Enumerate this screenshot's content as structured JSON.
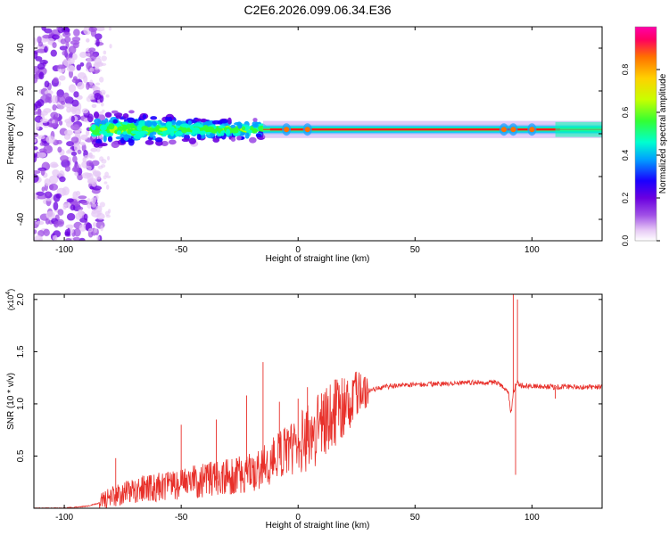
{
  "title": "C2E6.2026.099.06.34.E36",
  "chart_data": [
    {
      "type": "heatmap",
      "name": "spectrogram",
      "xlabel": "Height of straight line (km)",
      "ylabel": "Frequency (Hz)",
      "xlim": [
        -113,
        130
      ],
      "ylim": [
        -50,
        50
      ],
      "xticks": [
        -100,
        -50,
        0,
        50,
        100
      ],
      "xtick_labels": [
        "-100",
        "-50",
        "0",
        "50",
        "100"
      ],
      "yticks": [
        -40,
        -20,
        0,
        20,
        40
      ],
      "ytick_labels": [
        "-40",
        "-20",
        "0",
        "20",
        "40"
      ],
      "colorbar": {
        "label": "Normalized spectral amplitude",
        "range": [
          0,
          1
        ],
        "ticks": [
          0.0,
          0.2,
          0.4,
          0.6,
          0.8
        ],
        "tick_labels": [
          "0.0",
          "0.2",
          "0.4",
          "0.6",
          "0.8"
        ],
        "colormap": [
          "#ffffff",
          "#e6c8f5",
          "#a050e6",
          "#6a00e0",
          "#1a00ff",
          "#00a0ff",
          "#00ffd0",
          "#33ff33",
          "#c8ff00",
          "#ffd000",
          "#ff7000",
          "#ff0060",
          "#ff00aa"
        ]
      },
      "features": {
        "scatter_region_x": [
          -113,
          -88
        ],
        "band_noisy_x": [
          -88,
          -15
        ],
        "band_clean_x": [
          -15,
          130
        ],
        "band_center_hz": 2,
        "peak_color": "#ff1a1a",
        "perturbations_x": [
          -5,
          4,
          88,
          92,
          100
        ]
      }
    },
    {
      "type": "line",
      "name": "snr",
      "xlabel": "Height of straight line (km)",
      "ylabel": "SNR (10 * v/v)",
      "ylabel_exponent": "(x10",
      "ylabel_exponent_power": "4",
      "ylabel_exponent_close": ")",
      "xlim": [
        -113,
        130
      ],
      "ylim": [
        0.0,
        2.05
      ],
      "xticks": [
        -100,
        -50,
        0,
        50,
        100
      ],
      "xtick_labels": [
        "-100",
        "-50",
        "0",
        "50",
        "100"
      ],
      "yticks": [
        0.5,
        1.0,
        1.5,
        2.0
      ],
      "ytick_labels": [
        "0.5",
        "1.0",
        "1.5",
        "2.0"
      ],
      "color": "#e8302a",
      "envelope": {
        "x": [
          -113,
          -100,
          -90,
          -85,
          -80,
          -75,
          -70,
          -60,
          -50,
          -40,
          -30,
          -20,
          -15,
          -10,
          -5,
          0,
          5,
          10,
          15,
          20,
          25,
          30,
          35,
          40,
          50,
          60,
          70,
          80,
          85,
          88,
          90,
          91,
          92,
          93,
          94,
          95,
          100,
          110,
          120,
          130
        ],
        "y": [
          0.0,
          0.0,
          0.02,
          0.05,
          0.09,
          0.13,
          0.16,
          0.19,
          0.22,
          0.25,
          0.29,
          0.33,
          0.38,
          0.45,
          0.52,
          0.58,
          0.66,
          0.75,
          0.86,
          0.97,
          1.06,
          1.12,
          1.15,
          1.17,
          1.18,
          1.19,
          1.2,
          1.2,
          1.2,
          1.15,
          1.1,
          0.9,
          1.1,
          1.18,
          1.2,
          1.17,
          1.17,
          1.16,
          1.16,
          1.16
        ]
      },
      "spikes": [
        {
          "x": -78,
          "y": 0.48
        },
        {
          "x": -50,
          "y": 0.8
        },
        {
          "x": -35,
          "y": 0.85
        },
        {
          "x": -22,
          "y": 1.08
        },
        {
          "x": -15,
          "y": 1.4
        },
        {
          "x": -8,
          "y": 1.02
        },
        {
          "x": 0,
          "y": 1.05
        },
        {
          "x": 4,
          "y": 1.16
        },
        {
          "x": 10,
          "y": 1.1
        },
        {
          "x": 92,
          "y": 2.05
        },
        {
          "x": 93,
          "y": 0.32
        },
        {
          "x": 93.8,
          "y": 2.0
        },
        {
          "x": 110,
          "y": 1.05
        }
      ]
    }
  ]
}
